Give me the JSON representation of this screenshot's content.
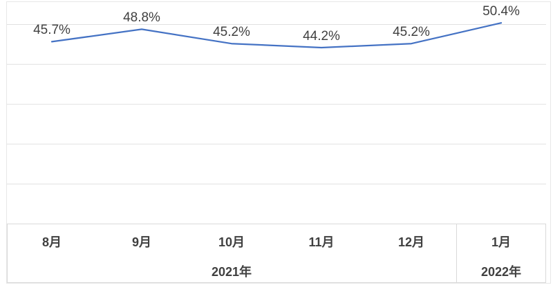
{
  "chart_data": {
    "type": "line",
    "title": "",
    "xlabel": "",
    "ylabel": "",
    "categories": [
      "8月",
      "9月",
      "10月",
      "11月",
      "12月",
      "1月"
    ],
    "category_groups": [
      {
        "label": "2021年",
        "span": 5
      },
      {
        "label": "2022年",
        "span": 1
      }
    ],
    "values": [
      45.7,
      48.8,
      45.2,
      44.2,
      45.2,
      50.4
    ],
    "data_labels": [
      "45.7%",
      "48.8%",
      "45.2%",
      "44.2%",
      "45.2%",
      "50.4%"
    ],
    "ylim": [
      0,
      55
    ],
    "gridline_step": 10,
    "grid": true,
    "legend": false
  },
  "colors": {
    "line": "#4472C4",
    "data_label_text": "#404040",
    "axis_label_text": "#404040",
    "gridline": "#E0E0E0",
    "axis_box_border": "#D9D9D9",
    "chart_border": "#E7E7E7",
    "background": "#FFFFFF"
  }
}
